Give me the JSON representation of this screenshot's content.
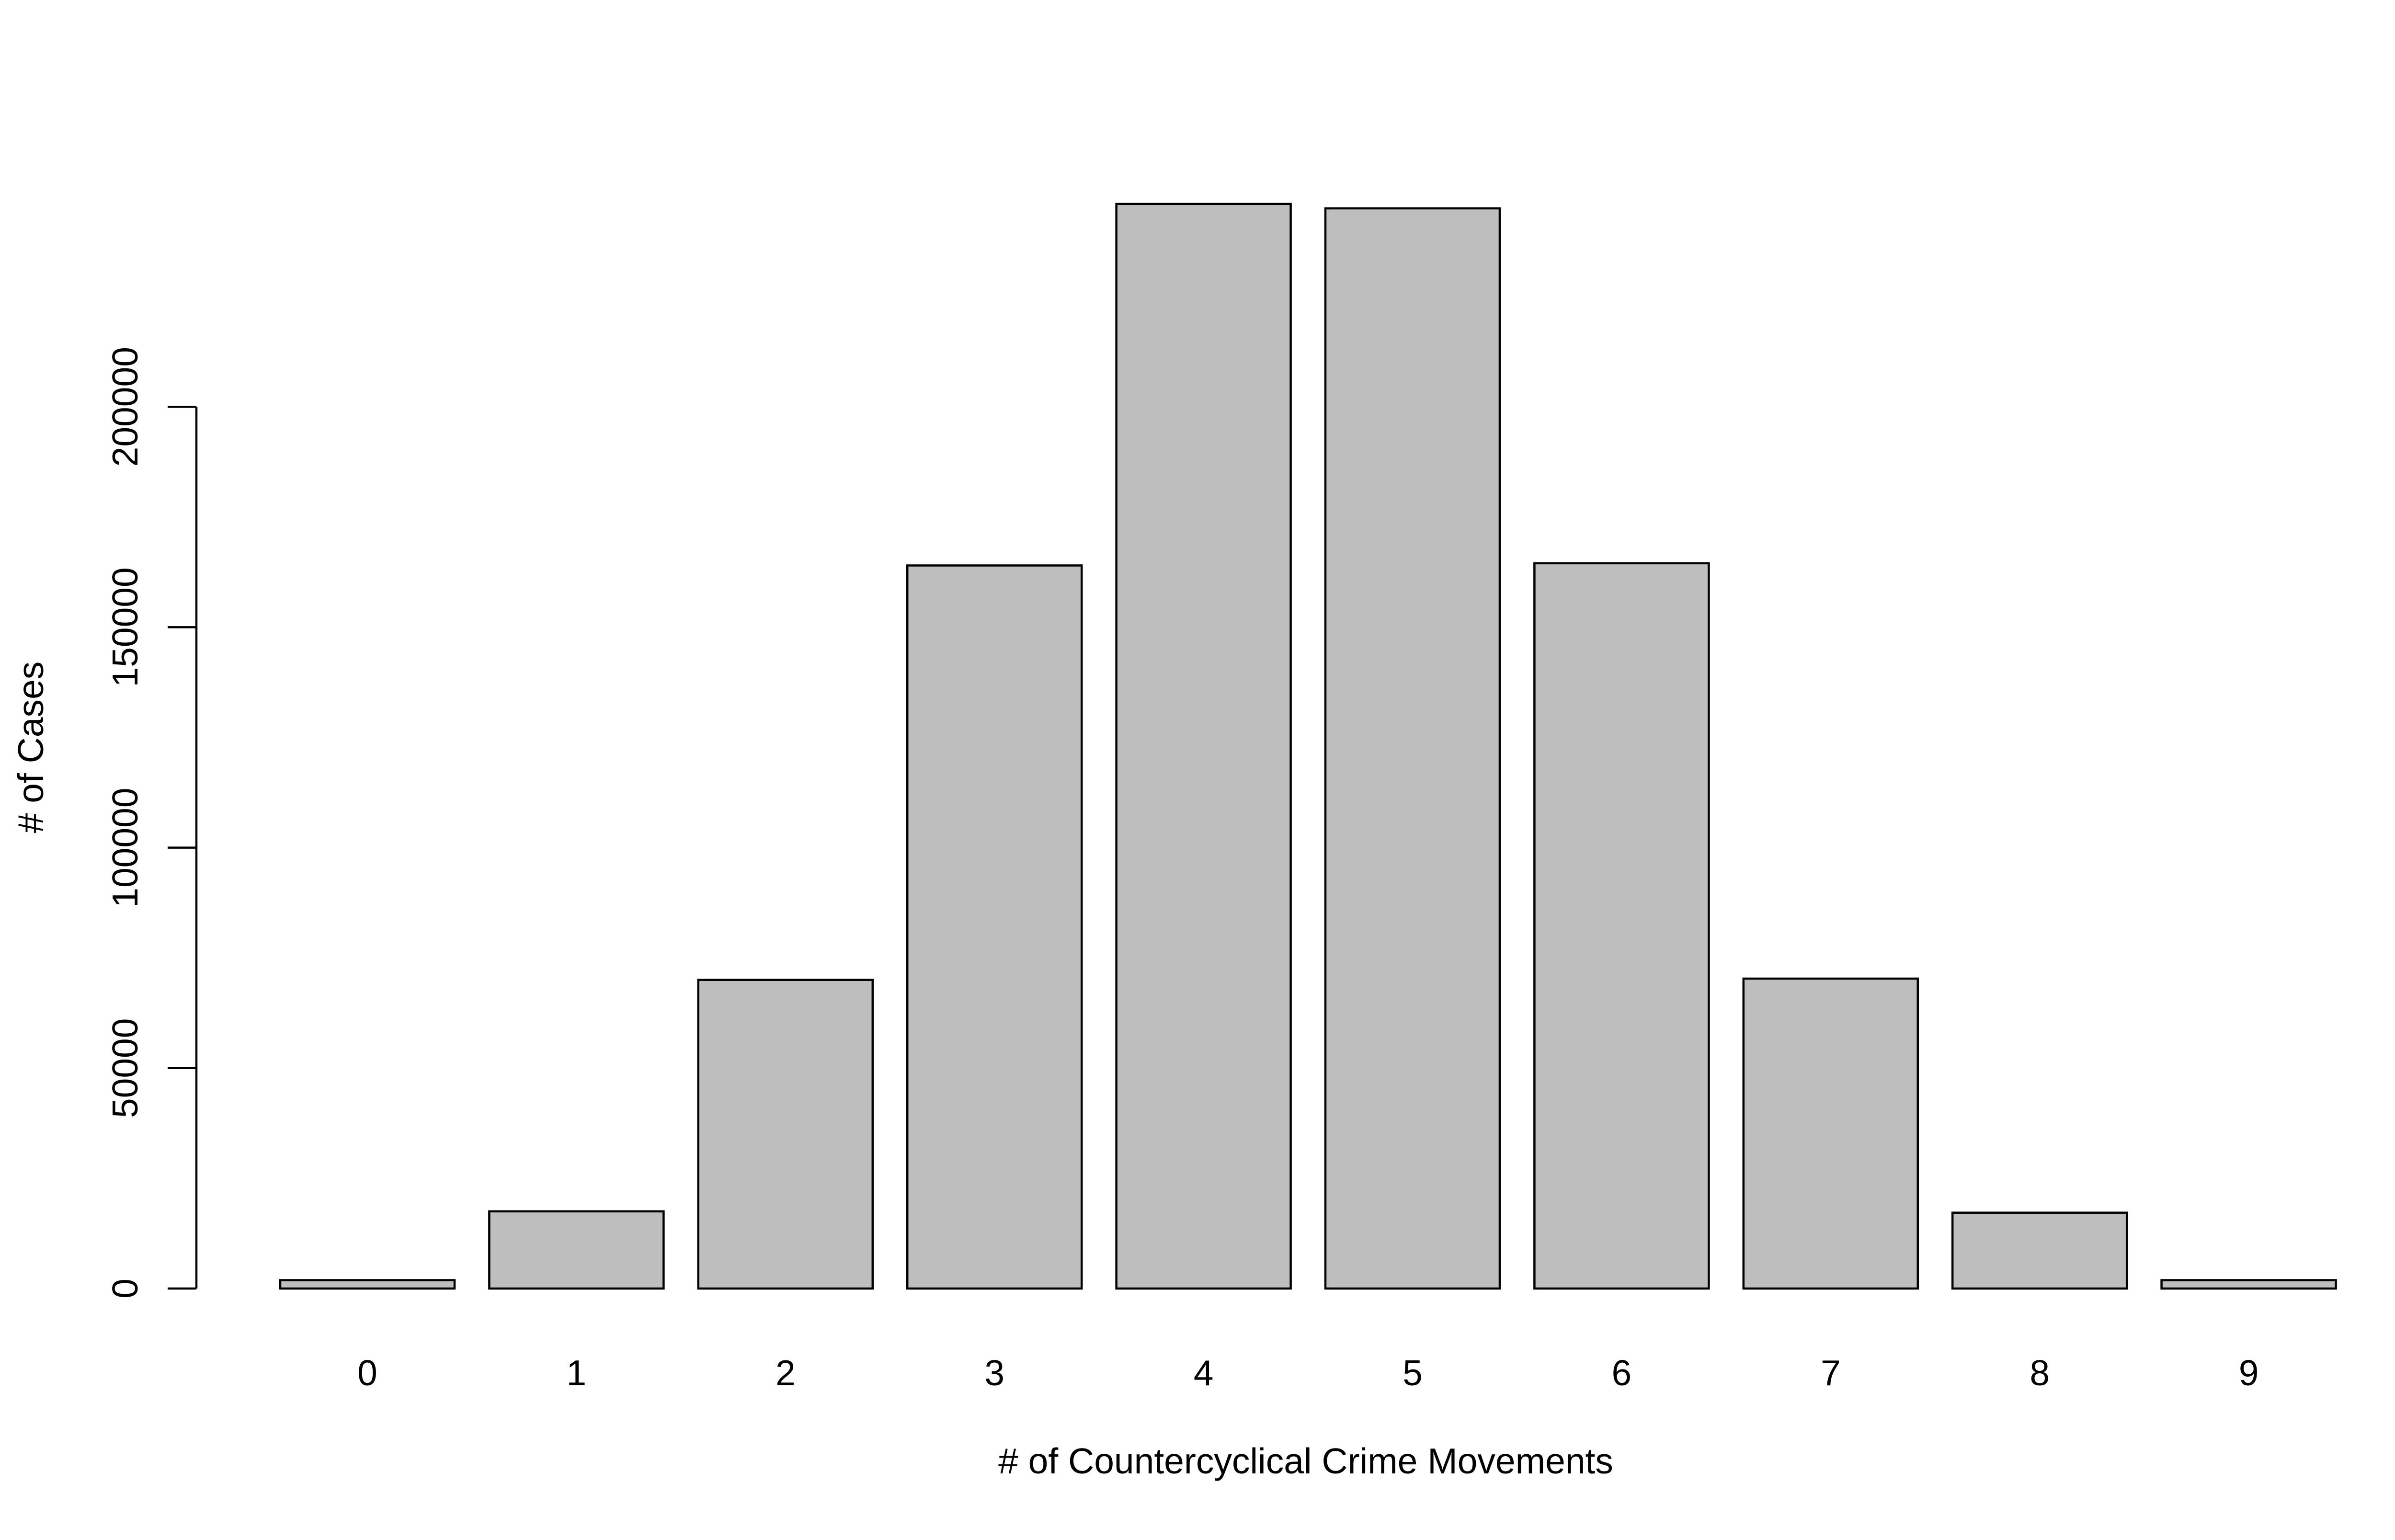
{
  "chart_data": {
    "type": "bar",
    "title": "",
    "xlabel": "# of Countercyclical Crime Movements",
    "ylabel": "# of Cases",
    "categories": [
      "0",
      "1",
      "2",
      "3",
      "4",
      "5",
      "6",
      "7",
      "8",
      "9"
    ],
    "values": [
      1900,
      17500,
      70000,
      164000,
      246000,
      245000,
      164500,
      70300,
      17200,
      1900
    ],
    "ylim": [
      0,
      250000
    ],
    "yticks": [
      0,
      50000,
      100000,
      150000,
      200000
    ],
    "ytick_labels": [
      "0",
      "50000",
      "100000",
      "150000",
      "200000"
    ],
    "grid": false,
    "legend": "none",
    "colors": {
      "bar_fill": "#bebebe",
      "bar_stroke": "#000000",
      "axis": "#000000"
    }
  }
}
